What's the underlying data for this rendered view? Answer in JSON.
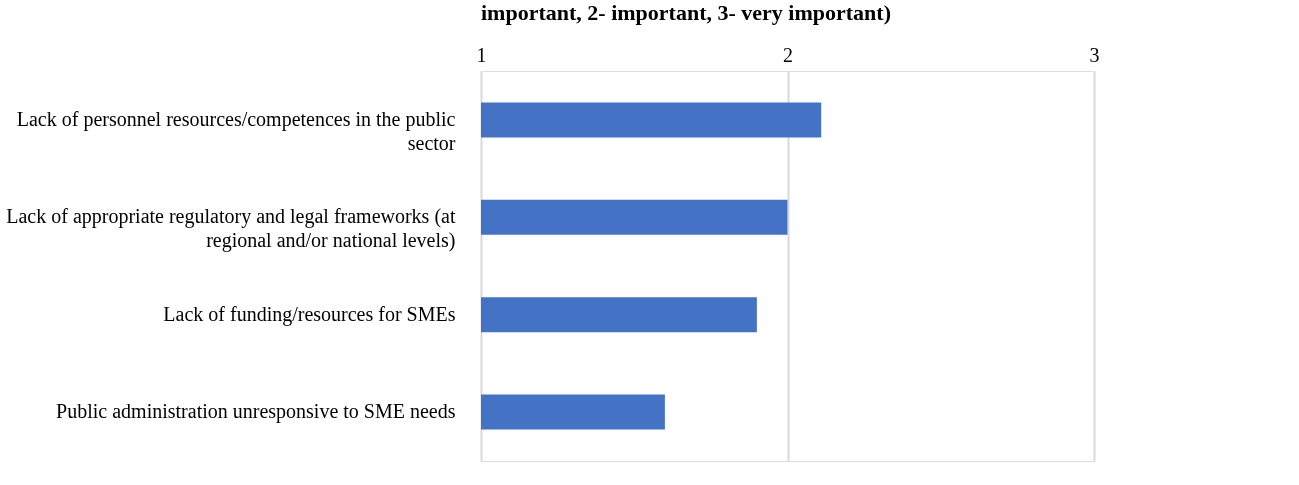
{
  "chart_data": {
    "type": "bar",
    "orientation": "horizontal",
    "title": "important, 2- important, 3- very important)",
    "categories": [
      "Lack of personnel resources/competences in the public sector",
      "Lack of appropriate regulatory and legal frameworks (at regional and/or national levels)",
      "Lack of funding/resources for SMEs",
      "Public administration unresponsive to SME needs"
    ],
    "values": [
      2.11,
      2.0,
      1.9,
      1.6
    ],
    "color": "#4472c4",
    "xlim": [
      1,
      3
    ],
    "xticks": [
      1,
      2,
      3
    ],
    "grid": "x"
  }
}
